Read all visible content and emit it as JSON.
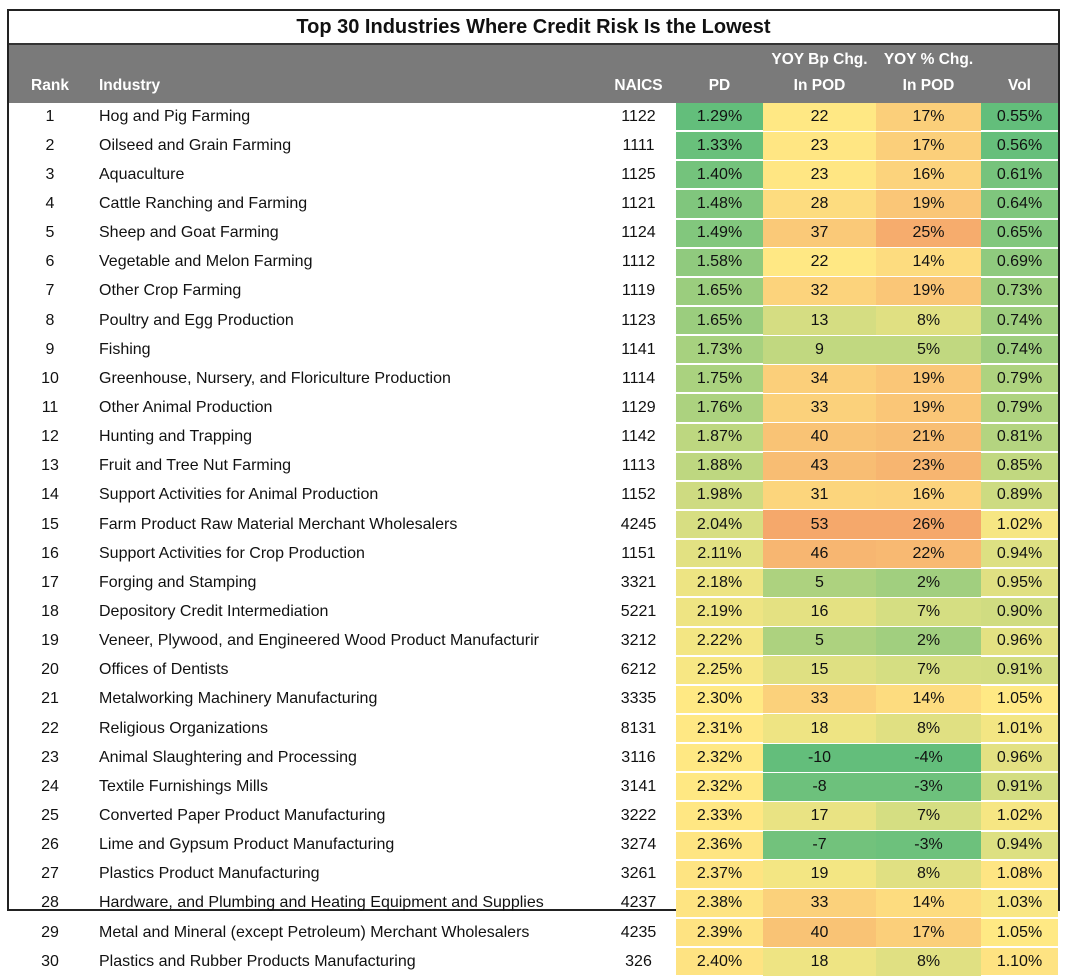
{
  "title": "Top 30 Industries Where Credit Risk Is the Lowest",
  "columns": {
    "rank": "Rank",
    "industry": "Industry",
    "naics": "NAICS",
    "pd": "PD",
    "bp_line1": "YOY Bp Chg.",
    "bp_line2": "In POD",
    "pct_line1": "YOY % Chg.",
    "pct_line2": "In POD",
    "vol": "Vol"
  },
  "color_scale": {
    "low": "#63BE7B",
    "mid": "#FFE984",
    "high": "#F5A86B"
  },
  "chart_data": {
    "type": "table",
    "title": "Top 30 Industries Where Credit Risk Is the Lowest",
    "rows": [
      [
        "1",
        "Hog and Pig Farming",
        "1122",
        "1.29%",
        "22",
        "17%",
        "0.55%"
      ],
      [
        "2",
        "Oilseed and Grain Farming",
        "1111",
        "1.33%",
        "23",
        "17%",
        "0.56%"
      ],
      [
        "3",
        "Aquaculture",
        "1125",
        "1.40%",
        "23",
        "16%",
        "0.61%"
      ],
      [
        "4",
        "Cattle Ranching and Farming",
        "1121",
        "1.48%",
        "28",
        "19%",
        "0.64%"
      ],
      [
        "5",
        "Sheep and Goat Farming",
        "1124",
        "1.49%",
        "37",
        "25%",
        "0.65%"
      ],
      [
        "6",
        "Vegetable and Melon Farming",
        "1112",
        "1.58%",
        "22",
        "14%",
        "0.69%"
      ],
      [
        "7",
        "Other Crop Farming",
        "1119",
        "1.65%",
        "32",
        "19%",
        "0.73%"
      ],
      [
        "8",
        "Poultry and Egg Production",
        "1123",
        "1.65%",
        "13",
        "8%",
        "0.74%"
      ],
      [
        "9",
        "Fishing",
        "1141",
        "1.73%",
        "9",
        "5%",
        "0.74%"
      ],
      [
        "10",
        "Greenhouse, Nursery, and Floriculture Production",
        "1114",
        "1.75%",
        "34",
        "19%",
        "0.79%"
      ],
      [
        "11",
        "Other Animal Production",
        "1129",
        "1.76%",
        "33",
        "19%",
        "0.79%"
      ],
      [
        "12",
        "Hunting and Trapping",
        "1142",
        "1.87%",
        "40",
        "21%",
        "0.81%"
      ],
      [
        "13",
        "Fruit and Tree Nut Farming",
        "1113",
        "1.88%",
        "43",
        "23%",
        "0.85%"
      ],
      [
        "14",
        "Support Activities for Animal Production",
        "1152",
        "1.98%",
        "31",
        "16%",
        "0.89%"
      ],
      [
        "15",
        "Farm Product Raw Material Merchant Wholesalers",
        "4245",
        "2.04%",
        "53",
        "26%",
        "1.02%"
      ],
      [
        "16",
        "Support Activities for Crop Production",
        "1151",
        "2.11%",
        "46",
        "22%",
        "0.94%"
      ],
      [
        "17",
        "Forging and Stamping",
        "3321",
        "2.18%",
        "5",
        "2%",
        "0.95%"
      ],
      [
        "18",
        "Depository Credit Intermediation",
        "5221",
        "2.19%",
        "16",
        "7%",
        "0.90%"
      ],
      [
        "19",
        "Veneer, Plywood, and Engineered Wood Product Manufacturir",
        "3212",
        "2.22%",
        "5",
        "2%",
        "0.96%"
      ],
      [
        "20",
        "Offices of Dentists",
        "6212",
        "2.25%",
        "15",
        "7%",
        "0.91%"
      ],
      [
        "21",
        "Metalworking Machinery Manufacturing",
        "3335",
        "2.30%",
        "33",
        "14%",
        "1.05%"
      ],
      [
        "22",
        "Religious Organizations",
        "8131",
        "2.31%",
        "18",
        "8%",
        "1.01%"
      ],
      [
        "23",
        "Animal Slaughtering and Processing",
        "3116",
        "2.32%",
        "-10",
        "-4%",
        "0.96%"
      ],
      [
        "24",
        "Textile Furnishings Mills",
        "3141",
        "2.32%",
        "-8",
        "-3%",
        "0.91%"
      ],
      [
        "25",
        "Converted Paper Product Manufacturing",
        "3222",
        "2.33%",
        "17",
        "7%",
        "1.02%"
      ],
      [
        "26",
        "Lime and Gypsum Product Manufacturing",
        "3274",
        "2.36%",
        "-7",
        "-3%",
        "0.94%"
      ],
      [
        "27",
        "Plastics Product Manufacturing",
        "3261",
        "2.37%",
        "19",
        "8%",
        "1.08%"
      ],
      [
        "28",
        "Hardware, and Plumbing and Heating Equipment and Supplies",
        "4237",
        "2.38%",
        "33",
        "14%",
        "1.03%"
      ],
      [
        "29",
        "Metal and Mineral (except Petroleum) Merchant Wholesalers",
        "4235",
        "2.39%",
        "40",
        "17%",
        "1.05%"
      ],
      [
        "30",
        "Plastics and Rubber Products Manufacturing",
        "326",
        "2.40%",
        "18",
        "8%",
        "1.10%"
      ]
    ]
  }
}
